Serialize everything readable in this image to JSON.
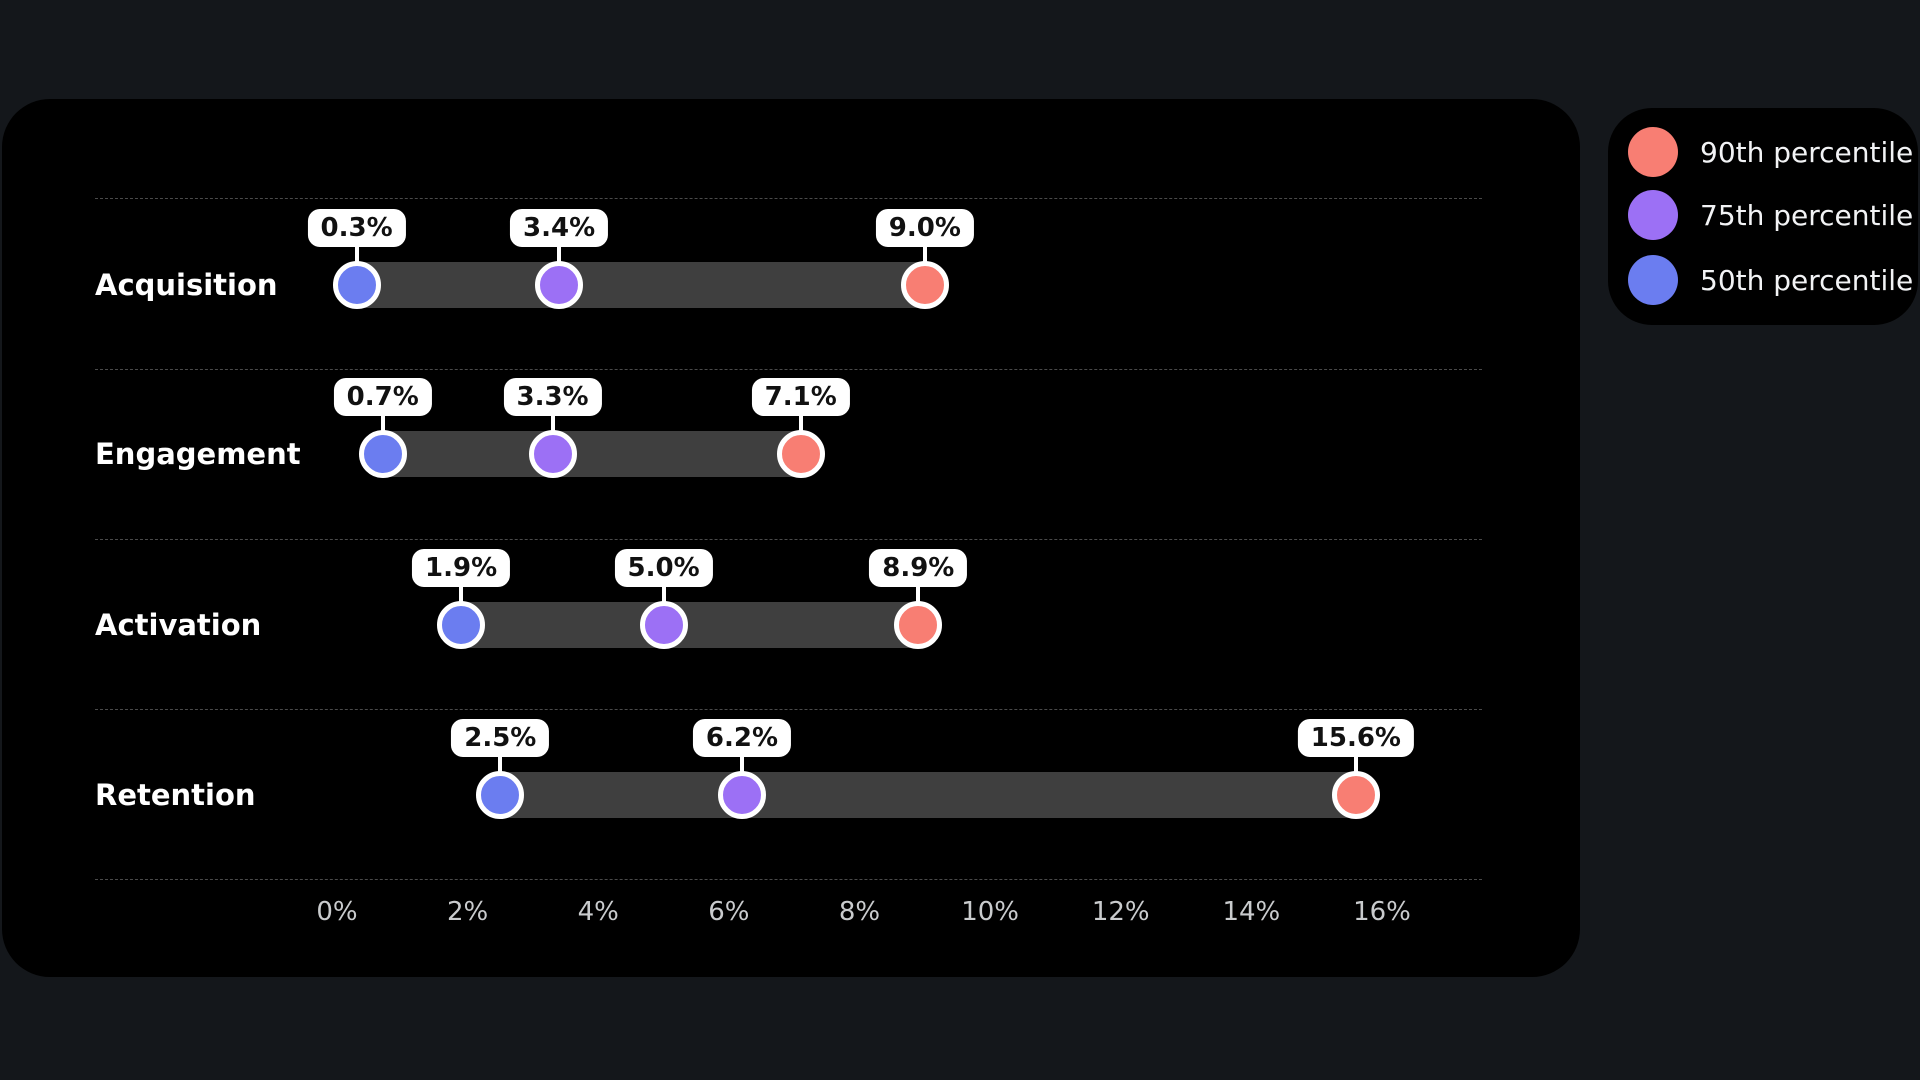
{
  "legend": {
    "items": [
      {
        "label": "90th percentile",
        "color": "#f87e73"
      },
      {
        "label": "75th percentile",
        "color": "#9c70f5"
      },
      {
        "label": "50th percentile",
        "color": "#6b7df0"
      }
    ]
  },
  "chart_data": {
    "type": "dumbbell-range",
    "title": "",
    "xlabel": "",
    "ylabel": "",
    "categories": [
      "Acquisition",
      "Engagement",
      "Activation",
      "Retention"
    ],
    "series": [
      {
        "name": "50th percentile",
        "color": "#6b7df0",
        "values": [
          0.3,
          0.7,
          1.9,
          2.5
        ]
      },
      {
        "name": "75th percentile",
        "color": "#9c70f5",
        "values": [
          3.4,
          3.3,
          5.0,
          6.2
        ]
      },
      {
        "name": "90th percentile",
        "color": "#f87e73",
        "values": [
          9.0,
          7.1,
          8.9,
          15.6
        ]
      }
    ],
    "value_labels": [
      [
        "0.3%",
        "3.4%",
        "9.0%"
      ],
      [
        "0.7%",
        "3.3%",
        "7.1%"
      ],
      [
        "1.9%",
        "5.0%",
        "8.9%"
      ],
      [
        "2.5%",
        "6.2%",
        "15.6%"
      ]
    ],
    "x_ticks": [
      "0%",
      "2%",
      "4%",
      "6%",
      "8%",
      "10%",
      "12%",
      "14%",
      "16%"
    ],
    "x_tick_values": [
      0,
      2,
      4,
      6,
      8,
      10,
      12,
      14,
      16
    ],
    "xlim": [
      0,
      16
    ],
    "grid": "horizontal dashed separators between rows",
    "legend_position": "top-right outside plot",
    "colors": {
      "page_background": "#14171b",
      "card_background": "#000000",
      "bar": "#3f3f3f",
      "gridline": "#4a4a4a",
      "axis_text": "#c9cbcd",
      "row_label_text": "#ffffff",
      "value_pill_background": "#ffffff",
      "value_pill_text": "#111111"
    }
  }
}
